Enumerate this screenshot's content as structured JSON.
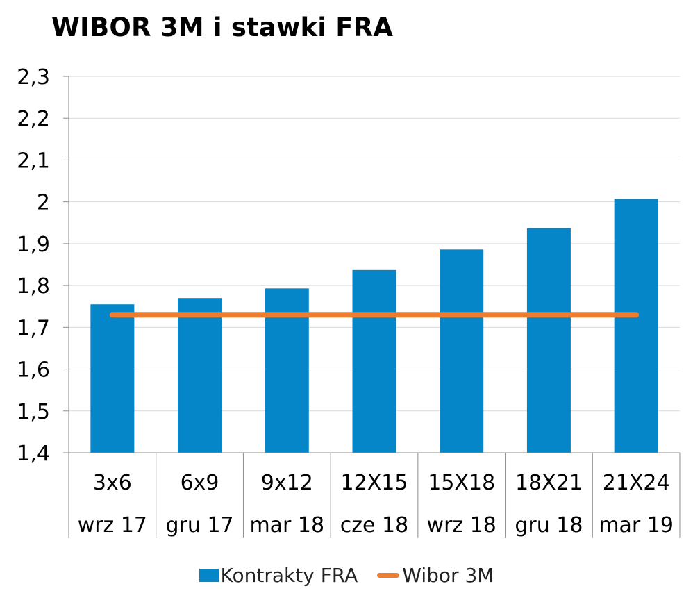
{
  "chart_data": {
    "type": "bar",
    "title": "WIBOR 3M i stawki FRA",
    "categories": [
      "3x6",
      "6x9",
      "9x12",
      "12X15",
      "15X18",
      "18X21",
      "21X24"
    ],
    "subcategories": [
      "wrz 17",
      "gru 17",
      "mar 18",
      "cze 18",
      "wrz 18",
      "gru 18",
      "mar 19"
    ],
    "series": [
      {
        "name": "Kontrakty FRA",
        "type": "bar",
        "color": "#0586c9",
        "values": [
          1.755,
          1.77,
          1.793,
          1.837,
          1.886,
          1.937,
          2.007
        ]
      },
      {
        "name": "Wibor 3M",
        "type": "line",
        "color": "#ed7d31",
        "values": [
          1.73,
          1.73,
          1.73,
          1.73,
          1.73,
          1.73,
          1.73
        ]
      }
    ],
    "ylim": [
      1.4,
      2.3
    ],
    "yticks": [
      "1,4",
      "1,5",
      "1,6",
      "1,7",
      "1,8",
      "1,9",
      "2",
      "2,1",
      "2,2",
      "2,3"
    ],
    "grid": true,
    "legend_position": "bottom"
  }
}
